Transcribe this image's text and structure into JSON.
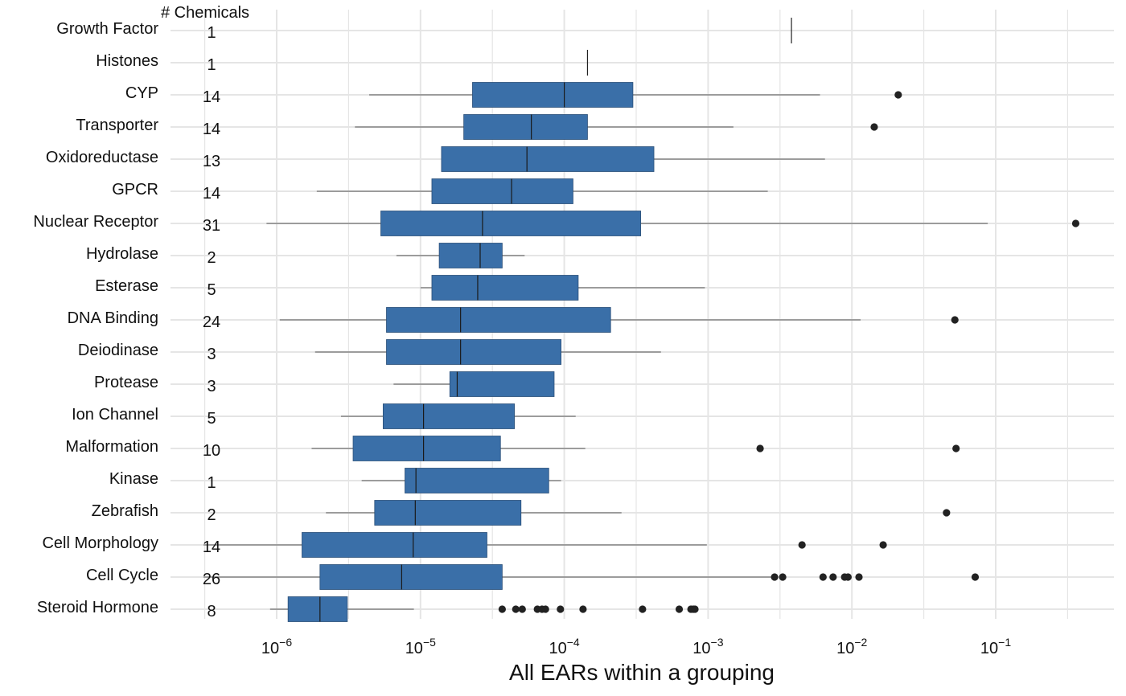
{
  "chart_data": {
    "type": "boxplot",
    "orientation": "horizontal",
    "xscale": "log10",
    "xlim": [
      3e-07,
      0.6
    ],
    "xlabel": "All EARs within a grouping",
    "count_header": "# Chemicals",
    "grid": true,
    "tick_values": [
      1e-06,
      1e-05,
      0.0001,
      0.001,
      0.01,
      0.1
    ],
    "tick_labels": [
      {
        "base": "10",
        "exp": "−6"
      },
      {
        "base": "10",
        "exp": "−5"
      },
      {
        "base": "10",
        "exp": "−4"
      },
      {
        "base": "10",
        "exp": "−3"
      },
      {
        "base": "10",
        "exp": "−2"
      },
      {
        "base": "10",
        "exp": "−1"
      }
    ],
    "box_color": "#3a6fa8",
    "categories": [
      {
        "name": "Growth Factor",
        "count": "1",
        "wlo": 0.0038,
        "q1": 0.0038,
        "median": 0.0038,
        "q3": 0.0038,
        "whi": 0.0038,
        "outliers": []
      },
      {
        "name": "Histones",
        "count": "1",
        "wlo": 0.000145,
        "q1": 0.000145,
        "median": 0.000145,
        "q3": 0.000145,
        "whi": 0.000145,
        "outliers": []
      },
      {
        "name": "CYP",
        "count": "14",
        "wlo": 4.4e-06,
        "q1": 2.3e-05,
        "median": 0.0001,
        "q3": 0.0003,
        "whi": 0.006,
        "outliers": [
          0.021
        ]
      },
      {
        "name": "Transporter",
        "count": "14",
        "wlo": 3.5e-06,
        "q1": 2e-05,
        "median": 5.9e-05,
        "q3": 0.000145,
        "whi": 0.0015,
        "outliers": [
          0.0143
        ]
      },
      {
        "name": "Oxidoreductase",
        "count": "13",
        "wlo": 1.4e-05,
        "q1": 1.4e-05,
        "median": 5.5e-05,
        "q3": 0.00042,
        "whi": 0.0065,
        "outliers": []
      },
      {
        "name": "GPCR",
        "count": "14",
        "wlo": 1.9e-06,
        "q1": 1.2e-05,
        "median": 4.3e-05,
        "q3": 0.000115,
        "whi": 0.0026,
        "outliers": []
      },
      {
        "name": "Nuclear Receptor",
        "count": "31",
        "wlo": 8.5e-07,
        "q1": 5.3e-06,
        "median": 2.7e-05,
        "q3": 0.00034,
        "whi": 0.088,
        "outliers": [
          0.36
        ]
      },
      {
        "name": "Hydrolase",
        "count": "2",
        "wlo": 6.8e-06,
        "q1": 1.35e-05,
        "median": 2.6e-05,
        "q3": 3.7e-05,
        "whi": 5.3e-05,
        "outliers": []
      },
      {
        "name": "Esterase",
        "count": "5",
        "wlo": 1e-05,
        "q1": 1.2e-05,
        "median": 2.5e-05,
        "q3": 0.000125,
        "whi": 0.00095,
        "outliers": []
      },
      {
        "name": "DNA Binding",
        "count": "24",
        "wlo": 1.05e-06,
        "q1": 5.8e-06,
        "median": 1.9e-05,
        "q3": 0.00021,
        "whi": 0.0115,
        "outliers": [
          0.052
        ]
      },
      {
        "name": "Deiodinase",
        "count": "3",
        "wlo": 1.85e-06,
        "q1": 5.8e-06,
        "median": 1.9e-05,
        "q3": 9.5e-05,
        "whi": 0.00047,
        "outliers": []
      },
      {
        "name": "Protease",
        "count": "3",
        "wlo": 6.5e-06,
        "q1": 1.6e-05,
        "median": 1.8e-05,
        "q3": 8.5e-05,
        "whi": 8.5e-05,
        "outliers": []
      },
      {
        "name": "Ion Channel",
        "count": "5",
        "wlo": 2.8e-06,
        "q1": 5.5e-06,
        "median": 1.05e-05,
        "q3": 4.5e-05,
        "whi": 0.00012,
        "outliers": []
      },
      {
        "name": "Malformation",
        "count": "10",
        "wlo": 1.75e-06,
        "q1": 3.4e-06,
        "median": 1.05e-05,
        "q3": 3.6e-05,
        "whi": 0.00014,
        "outliers": [
          0.0023,
          0.053
        ]
      },
      {
        "name": "Kinase",
        "count": "1",
        "wlo": 3.9e-06,
        "q1": 7.8e-06,
        "median": 9.3e-06,
        "q3": 7.8e-05,
        "whi": 9.5e-05,
        "outliers": []
      },
      {
        "name": "Zebrafish",
        "count": "2",
        "wlo": 2.2e-06,
        "q1": 4.8e-06,
        "median": 9.2e-06,
        "q3": 5e-05,
        "whi": 0.00025,
        "outliers": [
          0.0455
        ]
      },
      {
        "name": "Cell Morphology",
        "count": "14",
        "wlo": 3.1e-07,
        "q1": 1.5e-06,
        "median": 8.9e-06,
        "q3": 2.9e-05,
        "whi": 0.00098,
        "outliers": [
          0.0045,
          0.0165
        ]
      },
      {
        "name": "Cell Cycle",
        "count": "26",
        "wlo": 3.1e-07,
        "q1": 2e-06,
        "median": 7.4e-06,
        "q3": 3.7e-05,
        "whi": 0.0029,
        "outliers": [
          0.0029,
          0.0033,
          0.0063,
          0.0074,
          0.0089,
          0.0094,
          0.0112,
          0.072
        ]
      },
      {
        "name": "Steroid Hormone",
        "count": "8",
        "wlo": 9e-07,
        "q1": 1.2e-06,
        "median": 2e-06,
        "q3": 3.1e-06,
        "whi": 9e-06,
        "outliers": [
          3.7e-05,
          4.6e-05,
          5.1e-05,
          6.5e-05,
          7e-05,
          7.4e-05,
          9.4e-05,
          0.000135,
          0.00035,
          0.00063,
          0.00076,
          0.00079,
          0.00081
        ]
      }
    ]
  }
}
